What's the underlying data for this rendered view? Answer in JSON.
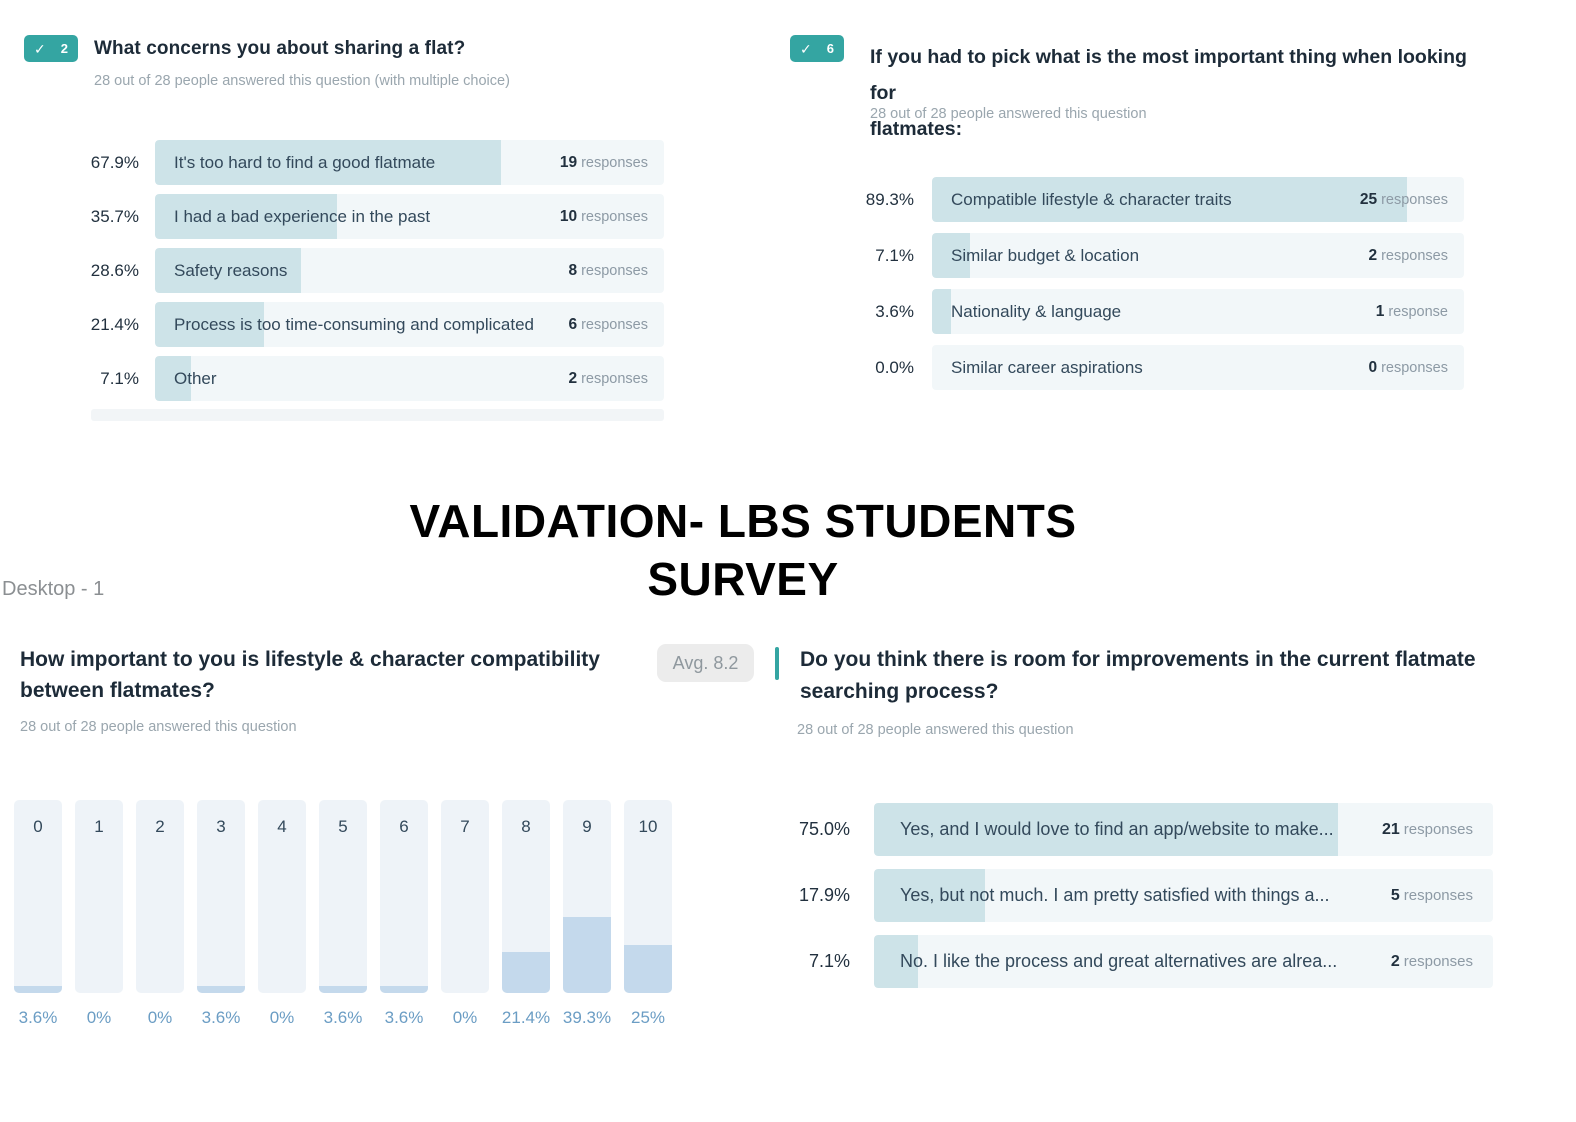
{
  "icons": {
    "check": "✓"
  },
  "frame": {
    "label": "Desktop - 1"
  },
  "main_title": {
    "line1": "VALIDATION- LBS STUDENTS",
    "line2": "SURVEY"
  },
  "colors": {
    "accent_teal": "#34a5a2",
    "bar_fill_teal": "#cde3e8",
    "bar_track": "#f2f7f9",
    "hist_fill_blue": "#c4d9ec",
    "hist_pct_blue": "#6b9dc4",
    "subtitle_gray": "#9aa6ae"
  },
  "q2": {
    "badge": "2",
    "title": "What concerns you about sharing a flat?",
    "subtitle": "28 out of 28 people answered this question (with multiple choice)",
    "rows": [
      {
        "pct_label": "67.9%",
        "pct": 67.9,
        "label": "It's too hard to find a good flatmate",
        "count": "19",
        "unit": "responses"
      },
      {
        "pct_label": "35.7%",
        "pct": 35.7,
        "label": "I had a bad experience in the past",
        "count": "10",
        "unit": "responses"
      },
      {
        "pct_label": "28.6%",
        "pct": 28.6,
        "label": "Safety reasons",
        "count": "8",
        "unit": "responses"
      },
      {
        "pct_label": "21.4%",
        "pct": 21.4,
        "label": "Process is too time-consuming and complicated",
        "count": "6",
        "unit": "responses"
      },
      {
        "pct_label": "7.1%",
        "pct": 7.1,
        "label": "Other",
        "count": "2",
        "unit": "responses"
      }
    ]
  },
  "q6": {
    "badge": "6",
    "title_line1": "If you had to pick what is the most important thing when looking for",
    "title_line2": "flatmates:",
    "subtitle": "28 out of 28 people answered this question",
    "rows": [
      {
        "pct_label": "89.3%",
        "pct": 89.3,
        "label": "Compatible lifestyle & character traits",
        "count": "25",
        "unit": "responses"
      },
      {
        "pct_label": "7.1%",
        "pct": 7.1,
        "label": "Similar budget & location",
        "count": "2",
        "unit": "responses"
      },
      {
        "pct_label": "3.6%",
        "pct": 3.6,
        "label": "Nationality & language",
        "count": "1",
        "unit": "response"
      },
      {
        "pct_label": "0.0%",
        "pct": 0,
        "label": "Similar career aspirations",
        "count": "0",
        "unit": "responses"
      }
    ]
  },
  "q_rating": {
    "title_line1": "How important to you is lifestyle & character compatibility",
    "title_line2": "between flatmates?",
    "avg_badge": "Avg. 8.2",
    "subtitle": "28 out of 28 people answered this question",
    "bars": [
      {
        "label": "0",
        "pct_label": "3.6%",
        "pct": 3.6
      },
      {
        "label": "1",
        "pct_label": "0%",
        "pct": 0
      },
      {
        "label": "2",
        "pct_label": "0%",
        "pct": 0
      },
      {
        "label": "3",
        "pct_label": "3.6%",
        "pct": 3.6
      },
      {
        "label": "4",
        "pct_label": "0%",
        "pct": 0
      },
      {
        "label": "5",
        "pct_label": "3.6%",
        "pct": 3.6
      },
      {
        "label": "6",
        "pct_label": "3.6%",
        "pct": 3.6
      },
      {
        "label": "7",
        "pct_label": "0%",
        "pct": 0
      },
      {
        "label": "8",
        "pct_label": "21.4%",
        "pct": 21.4
      },
      {
        "label": "9",
        "pct_label": "39.3%",
        "pct": 39.3
      },
      {
        "label": "10",
        "pct_label": "25%",
        "pct": 25
      }
    ]
  },
  "q_improve": {
    "title_line1": "Do you think there is room for improvements in the current flatmate",
    "title_line2": "searching process?",
    "subtitle": "28 out of 28 people answered this question",
    "rows": [
      {
        "pct_label": "75.0%",
        "pct": 75,
        "label": "Yes, and I would love to find an app/website to make...",
        "count": "21",
        "unit": "responses"
      },
      {
        "pct_label": "17.9%",
        "pct": 17.9,
        "label": "Yes, but not much. I am pretty satisfied with things a...",
        "count": "5",
        "unit": "responses"
      },
      {
        "pct_label": "7.1%",
        "pct": 7.1,
        "label": "No. I like the process and great alternatives are alrea...",
        "count": "2",
        "unit": "responses"
      }
    ]
  },
  "chart_data": [
    {
      "type": "bar",
      "orientation": "horizontal",
      "question_number": 2,
      "title": "What concerns you about sharing a flat?",
      "subtitle": "28 out of 28 people answered this question (with multiple choice)",
      "categories": [
        "It's too hard to find a good flatmate",
        "I had a bad experience in the past",
        "Safety reasons",
        "Process is too time-consuming and complicated",
        "Other"
      ],
      "values_percent": [
        67.9,
        35.7,
        28.6,
        21.4,
        7.1
      ],
      "responses": [
        19,
        10,
        8,
        6,
        2
      ],
      "respondents": 28
    },
    {
      "type": "bar",
      "orientation": "horizontal",
      "question_number": 6,
      "title": "If you had to pick what is the most important thing when looking for flatmates:",
      "subtitle": "28 out of 28 people answered this question",
      "categories": [
        "Compatible lifestyle & character traits",
        "Similar budget & location",
        "Nationality & language",
        "Similar career aspirations"
      ],
      "values_percent": [
        89.3,
        7.1,
        3.6,
        0.0
      ],
      "responses": [
        25,
        2,
        1,
        0
      ],
      "respondents": 28
    },
    {
      "type": "bar",
      "orientation": "vertical",
      "title": "How important to you is lifestyle & character compatibility between flatmates?",
      "subtitle": "28 out of 28 people answered this question",
      "average": 8.2,
      "categories": [
        "0",
        "1",
        "2",
        "3",
        "4",
        "5",
        "6",
        "7",
        "8",
        "9",
        "10"
      ],
      "values_percent": [
        3.6,
        0,
        0,
        3.6,
        0,
        3.6,
        3.6,
        0,
        21.4,
        39.3,
        25
      ],
      "ylim": [
        0,
        100
      ],
      "respondents": 28
    },
    {
      "type": "bar",
      "orientation": "horizontal",
      "title": "Do you think there is room for improvements in the current flatmate searching process?",
      "subtitle": "28 out of 28 people answered this question",
      "categories": [
        "Yes, and I would love to find an app/website to make...",
        "Yes, but not much. I am pretty satisfied with things a...",
        "No. I like the process and great alternatives are alrea..."
      ],
      "values_percent": [
        75.0,
        17.9,
        7.1
      ],
      "responses": [
        21,
        5,
        2
      ],
      "respondents": 28
    }
  ]
}
